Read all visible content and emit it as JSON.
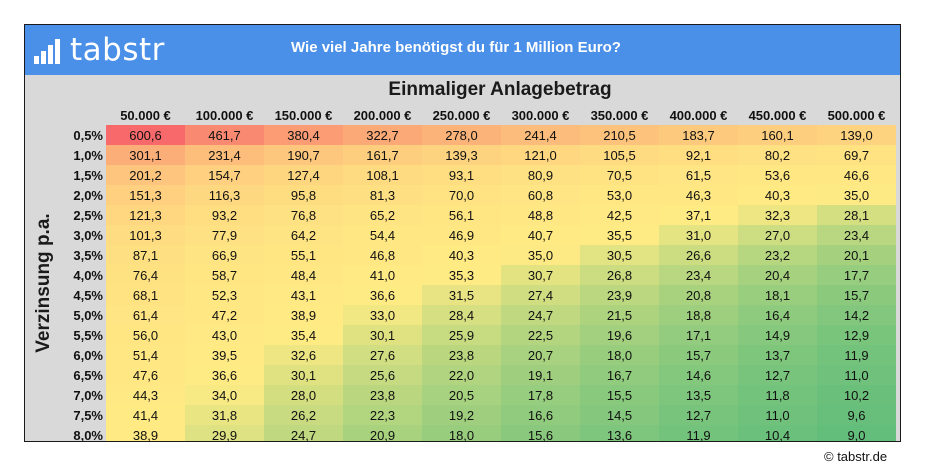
{
  "brand": {
    "logo_text": "tabstr",
    "logo_icon": "bar-chart-icon"
  },
  "banner": {
    "title": "Wie viel Jahre benötigst du für 1 Million Euro?",
    "color": "#4a90e8"
  },
  "footer": {
    "credit": "© tabstr.de"
  },
  "chart_data": {
    "type": "heatmap",
    "title": "Wie viel Jahre benötigst du für 1 Million Euro?",
    "xlabel": "Einmaliger Anlagebetrag",
    "ylabel": "Verzinsung p.a.",
    "columns": [
      "50.000 €",
      "100.000 €",
      "150.000 €",
      "200.000 €",
      "250.000 €",
      "300.000 €",
      "350.000 €",
      "400.000 €",
      "450.000 €",
      "500.000 €"
    ],
    "rows": [
      "0,5%",
      "1,0%",
      "1,5%",
      "2,0%",
      "2,5%",
      "3,0%",
      "3,5%",
      "4,0%",
      "4,5%",
      "5,0%",
      "5,5%",
      "6,0%",
      "6,5%",
      "7,0%",
      "7,5%",
      "8,0%"
    ],
    "values": [
      [
        600.6,
        461.7,
        380.4,
        322.7,
        278.0,
        241.4,
        210.5,
        183.7,
        160.1,
        139.0
      ],
      [
        301.1,
        231.4,
        190.7,
        161.7,
        139.3,
        121.0,
        105.5,
        92.1,
        80.2,
        69.7
      ],
      [
        201.2,
        154.7,
        127.4,
        108.1,
        93.1,
        80.9,
        70.5,
        61.5,
        53.6,
        46.6
      ],
      [
        151.3,
        116.3,
        95.8,
        81.3,
        70.0,
        60.8,
        53.0,
        46.3,
        40.3,
        35.0
      ],
      [
        121.3,
        93.2,
        76.8,
        65.2,
        56.1,
        48.8,
        42.5,
        37.1,
        32.3,
        28.1
      ],
      [
        101.3,
        77.9,
        64.2,
        54.4,
        46.9,
        40.7,
        35.5,
        31.0,
        27.0,
        23.4
      ],
      [
        87.1,
        66.9,
        55.1,
        46.8,
        40.3,
        35.0,
        30.5,
        26.6,
        23.2,
        20.1
      ],
      [
        76.4,
        58.7,
        48.4,
        41.0,
        35.3,
        30.7,
        26.8,
        23.4,
        20.4,
        17.7
      ],
      [
        68.1,
        52.3,
        43.1,
        36.6,
        31.5,
        27.4,
        23.9,
        20.8,
        18.1,
        15.7
      ],
      [
        61.4,
        47.2,
        38.9,
        33.0,
        28.4,
        24.7,
        21.5,
        18.8,
        16.4,
        14.2
      ],
      [
        56.0,
        43.0,
        35.4,
        30.1,
        25.9,
        22.5,
        19.6,
        17.1,
        14.9,
        12.9
      ],
      [
        51.4,
        39.5,
        32.6,
        27.6,
        23.8,
        20.7,
        18.0,
        15.7,
        13.7,
        11.9
      ],
      [
        47.6,
        36.6,
        30.1,
        25.6,
        22.0,
        19.1,
        16.7,
        14.6,
        12.7,
        11.0
      ],
      [
        44.3,
        34.0,
        28.0,
        23.8,
        20.5,
        17.8,
        15.5,
        13.5,
        11.8,
        10.2
      ],
      [
        41.4,
        31.8,
        26.2,
        22.3,
        19.2,
        16.6,
        14.5,
        12.7,
        11.0,
        9.6
      ],
      [
        38.9,
        29.9,
        24.7,
        20.9,
        18.0,
        15.6,
        13.6,
        11.9,
        10.4,
        9.0
      ]
    ],
    "color_scale": {
      "low": "#63be7b",
      "mid": "#ffeb84",
      "high": "#f8696b"
    }
  }
}
